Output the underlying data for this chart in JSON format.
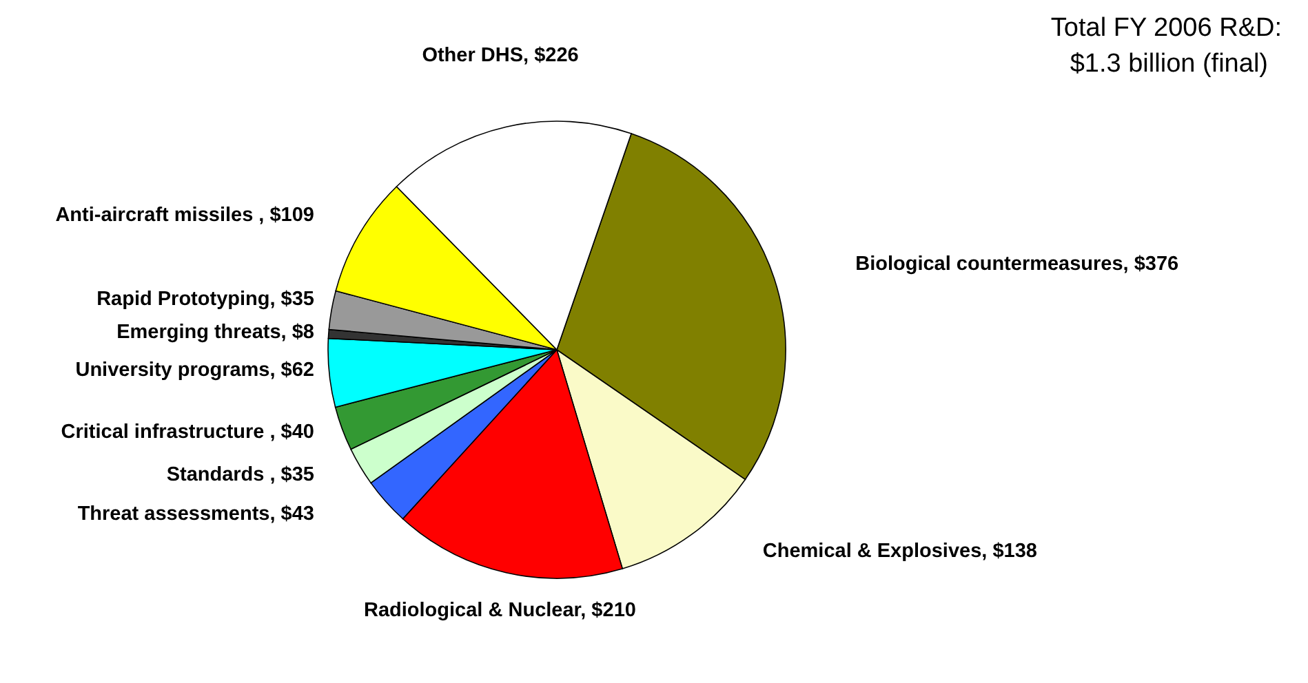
{
  "chart_data": {
    "type": "pie",
    "title": "Total FY 2006 R&D:",
    "subtitle": "$1.3 billion (final)",
    "categories": [
      "Biological countermeasures",
      "Chemical & Explosives",
      "Radiological & Nuclear",
      "Threat assessments",
      "Standards ",
      "Critical infrastructure ",
      "University programs",
      "Emerging threats",
      "Rapid Prototyping",
      "Anti-aircraft missiles ",
      "Other DHS"
    ],
    "values": [
      376,
      138,
      210,
      43,
      35,
      40,
      62,
      8,
      35,
      109,
      226
    ],
    "value_labels": [
      "$376",
      "$138",
      "$210",
      "$43",
      "$35",
      "$40",
      "$62",
      "$8",
      "$35",
      "$109",
      "$226"
    ],
    "colors": [
      "#808000",
      "#fafac8",
      "#ff0000",
      "#3366ff",
      "#ccffcc",
      "#339933",
      "#00ffff",
      "#333333",
      "#999999",
      "#ffff00",
      "#ffffff"
    ]
  }
}
